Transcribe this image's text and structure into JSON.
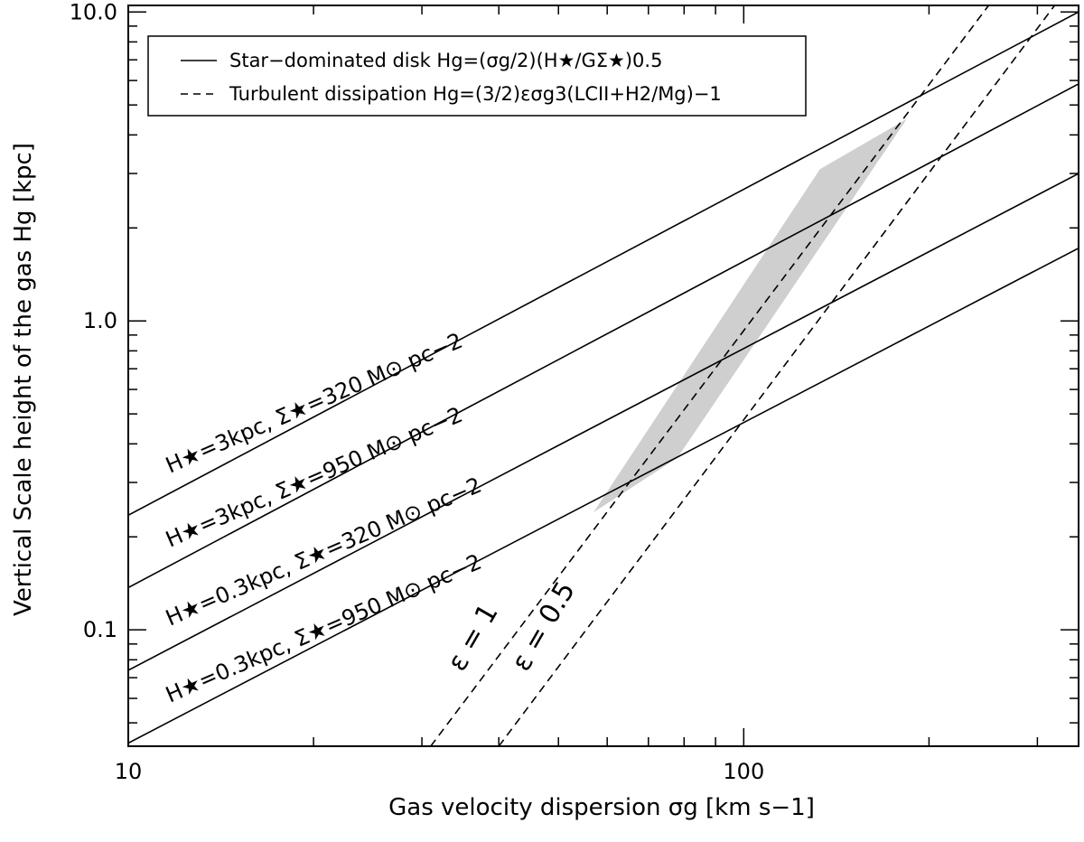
{
  "chart_data": {
    "type": "line",
    "xscale": "log",
    "yscale": "log",
    "xlim": [
      10,
      350
    ],
    "ylim": [
      0.042,
      10.5
    ],
    "xlabel": "Gas velocity dispersion σg [km s−1]",
    "ylabel": "Vertical Scale height of the gas Hg [kpc]",
    "x_ticks": [
      {
        "value": 10,
        "label": "10"
      },
      {
        "value": 100,
        "label": "100"
      }
    ],
    "y_ticks": [
      {
        "value": 0.1,
        "label": "0.1"
      },
      {
        "value": 1.0,
        "label": "1.0"
      },
      {
        "value": 10.0,
        "label": "10.0"
      }
    ],
    "legend": {
      "placement": "top-left",
      "entries": [
        {
          "style": "solid",
          "label": "Star−dominated disk Hg=(σg/2)(H★/GΣ★)0.5"
        },
        {
          "style": "dashed",
          "label": "Turbulent dissipation Hg=(3/2)εσg3(LCII+H2/Mg)−1"
        }
      ]
    },
    "series": [
      {
        "style": "solid",
        "label": "H★=3kpc, Σ★=320 M⊙ pc−2",
        "x": [
          10,
          350
        ],
        "y": [
          0.235,
          10.0
        ]
      },
      {
        "style": "solid",
        "label": "H★=3kpc, Σ★=950 M⊙ pc−2",
        "x": [
          10,
          350
        ],
        "y": [
          0.137,
          5.85
        ]
      },
      {
        "style": "solid",
        "label": "H★=0.3kpc, Σ★=320 M⊙ pc−2",
        "x": [
          10,
          350
        ],
        "y": [
          0.074,
          3.0
        ]
      },
      {
        "style": "solid",
        "label": "H★=0.3kpc, Σ★=950 M⊙ pc−2",
        "x": [
          10,
          350
        ],
        "y": [
          0.043,
          1.72
        ]
      },
      {
        "style": "dashed",
        "label": "ε = 1",
        "x": [
          31,
          250
        ],
        "y": [
          0.042,
          10.5
        ]
      },
      {
        "style": "dashed",
        "label": "ε = 0.5",
        "x": [
          40,
          320
        ],
        "y": [
          0.042,
          10.5
        ]
      }
    ],
    "shaded_region": {
      "color": "#cfcfcf",
      "vertices": [
        [
          57,
          0.24
        ],
        [
          78,
          0.36
        ],
        [
          184,
          4.5
        ],
        [
          133,
          3.1
        ]
      ]
    }
  }
}
